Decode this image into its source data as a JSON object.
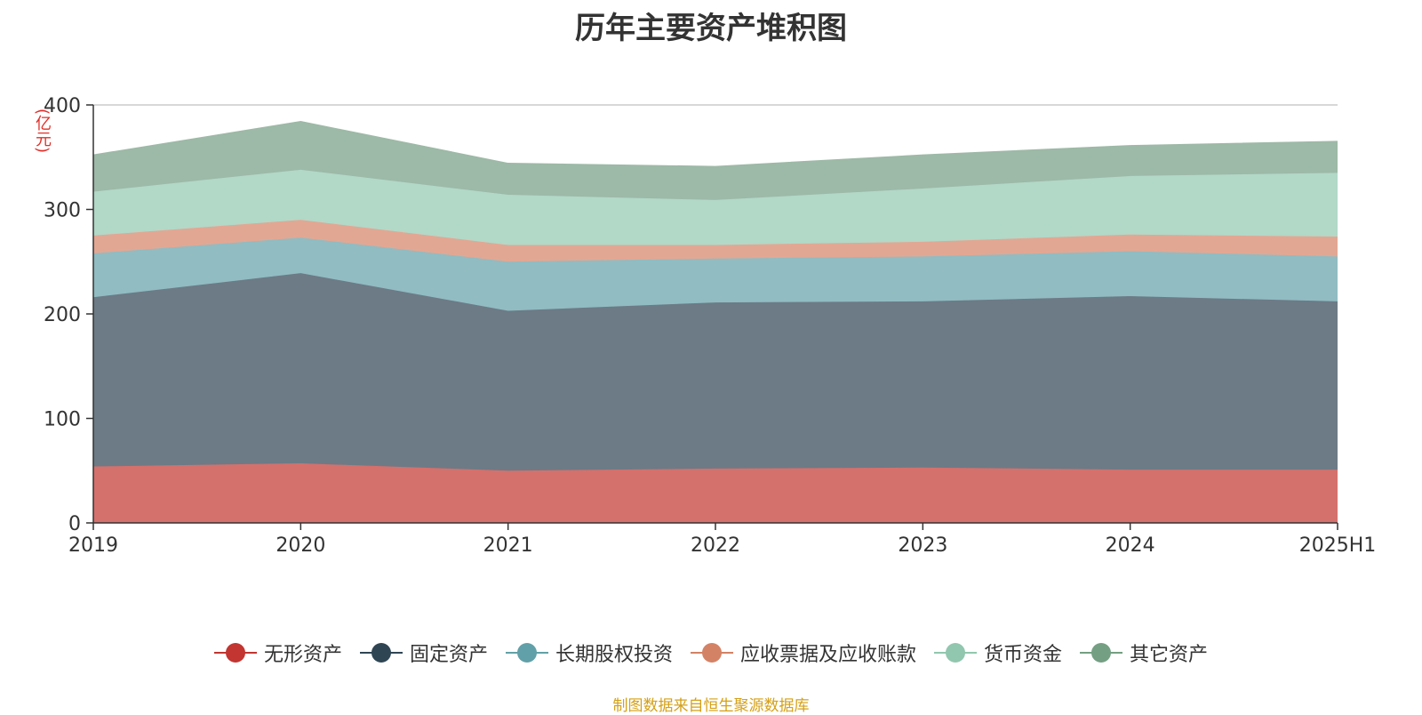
{
  "title": "历年主要资产堆积图",
  "source_note": "制图数据来自恒生聚源数据库",
  "chart_data": {
    "type": "area",
    "stacked": true,
    "title": "历年主要资产堆积图",
    "ylabel": "(亿元)",
    "xlabel": "",
    "categories": [
      "2019",
      "2020",
      "2021",
      "2022",
      "2023",
      "2024",
      "2025H1"
    ],
    "ylim": [
      0,
      400
    ],
    "yticks": [
      0,
      100,
      200,
      300,
      400
    ],
    "grid": true,
    "legend_position": "bottom",
    "series": [
      {
        "name": "无形资产",
        "color": "#c23531",
        "fill": "#d4716d",
        "values": [
          54,
          57,
          50,
          52,
          53,
          51,
          51
        ]
      },
      {
        "name": "固定资产",
        "color": "#2f4554",
        "fill": "#6d7b86",
        "values": [
          162,
          182,
          153,
          159,
          159,
          166,
          161
        ]
      },
      {
        "name": "长期股权投资",
        "color": "#61a0a8",
        "fill": "#90bcc2",
        "values": [
          42,
          34,
          47,
          42,
          43,
          43,
          43
        ]
      },
      {
        "name": "应收票据及应收账款",
        "color": "#d48265",
        "fill": "#e2a793",
        "values": [
          17,
          17,
          16,
          13,
          14,
          16,
          19
        ]
      },
      {
        "name": "货币资金",
        "color": "#91c7ae",
        "fill": "#b2d8c7",
        "values": [
          42,
          48,
          48,
          43,
          51,
          56,
          61
        ]
      },
      {
        "name": "其它资产",
        "color": "#749f83",
        "fill": "#9db9a7",
        "values": [
          35,
          46,
          30,
          32,
          32,
          29,
          30
        ]
      }
    ]
  }
}
